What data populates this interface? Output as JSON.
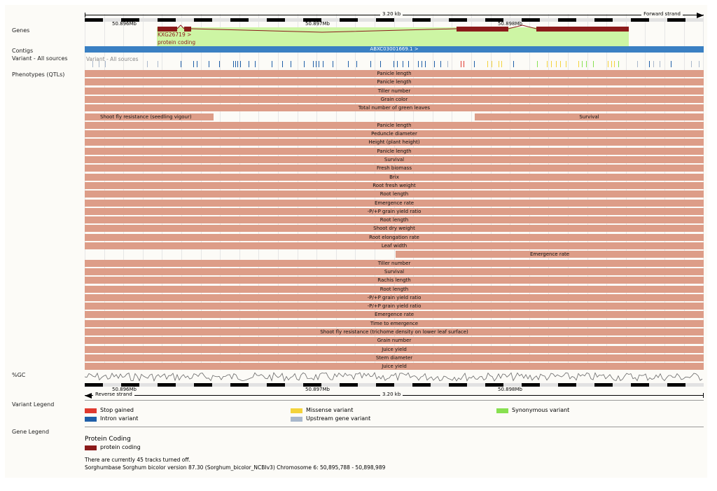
{
  "scale": {
    "span_label": "3.20 kb",
    "forward_label": "Forward strand",
    "reverse_label": "Reverse strand",
    "bp_labels": [
      "50.896Mb",
      "50.897Mb",
      "50.898Mb"
    ]
  },
  "track_labels": {
    "genes": "Genes",
    "contigs": "Contigs",
    "variant": "Variant - All sources",
    "phenotypes": "Phenotypes (QTLs)",
    "gc": "%GC",
    "variant_legend": "Variant Legend",
    "gene_legend": "Gene Legend"
  },
  "gene": {
    "name": "KXG26719 >",
    "biotype": "protein coding"
  },
  "contig": {
    "label": "ABXC03001669.1 >"
  },
  "variant_overlay": "Variant - All sources",
  "qtls": [
    {
      "label": "Panicle length"
    },
    {
      "label": "Panicle length"
    },
    {
      "label": "Tiller number"
    },
    {
      "label": "Grain color"
    },
    {
      "label": "Total number of green leaves"
    },
    {
      "label": "Shoot fly resistance (seedling vigour)",
      "split": true,
      "label_right": "Survival"
    },
    {
      "label": "Panicle length"
    },
    {
      "label": "Peduncle diameter"
    },
    {
      "label": "Height (plant height)"
    },
    {
      "label": "Panicle length"
    },
    {
      "label": "Survival"
    },
    {
      "label": "Fresh biomass"
    },
    {
      "label": "Brix"
    },
    {
      "label": "Root fresh weight"
    },
    {
      "label": "Root length"
    },
    {
      "label": "Emergence rate"
    },
    {
      "label": "-P/+P grain yield ratio"
    },
    {
      "label": "Root length"
    },
    {
      "label": "Shoot dry weight"
    },
    {
      "label": "Root elongation rate"
    },
    {
      "label": "Leaf width"
    },
    {
      "label": "Emergence rate",
      "partial": true
    },
    {
      "label": "Tiller number"
    },
    {
      "label": "Survival"
    },
    {
      "label": "Rachis length"
    },
    {
      "label": "Root length"
    },
    {
      "label": "-P/+P grain yield ratio"
    },
    {
      "label": "-P/+P grain yield ratio"
    },
    {
      "label": "Emergence rate"
    },
    {
      "label": "Time to emergence"
    },
    {
      "label": "Shoot fly resistance (trichome density on lower leaf surface)"
    },
    {
      "label": "Grain number"
    },
    {
      "label": "Juice yield"
    },
    {
      "label": "Stem diameter"
    },
    {
      "label": "Juice yield"
    }
  ],
  "variant_legend": [
    {
      "label": "Stop gained",
      "color": "#e03a2f"
    },
    {
      "label": "Missense variant",
      "color": "#f3d33b"
    },
    {
      "label": "Synonymous variant",
      "color": "#88e050"
    },
    {
      "label": "Intron variant",
      "color": "#1f5fa8"
    },
    {
      "label": "Upstream gene variant",
      "color": "#a9b8cc"
    }
  ],
  "gene_legend": {
    "heading": "Protein Coding",
    "item": "protein coding",
    "color": "#8b1a1a"
  },
  "footer": {
    "tracks_off": "There are currently 45 tracks turned off.",
    "assembly": "Sorghumbase Sorghum bicolor version 87.30 (Sorghum_bicolor_NCBIv3) Chromosome 6: 50,895,788 - 50,898,989"
  }
}
